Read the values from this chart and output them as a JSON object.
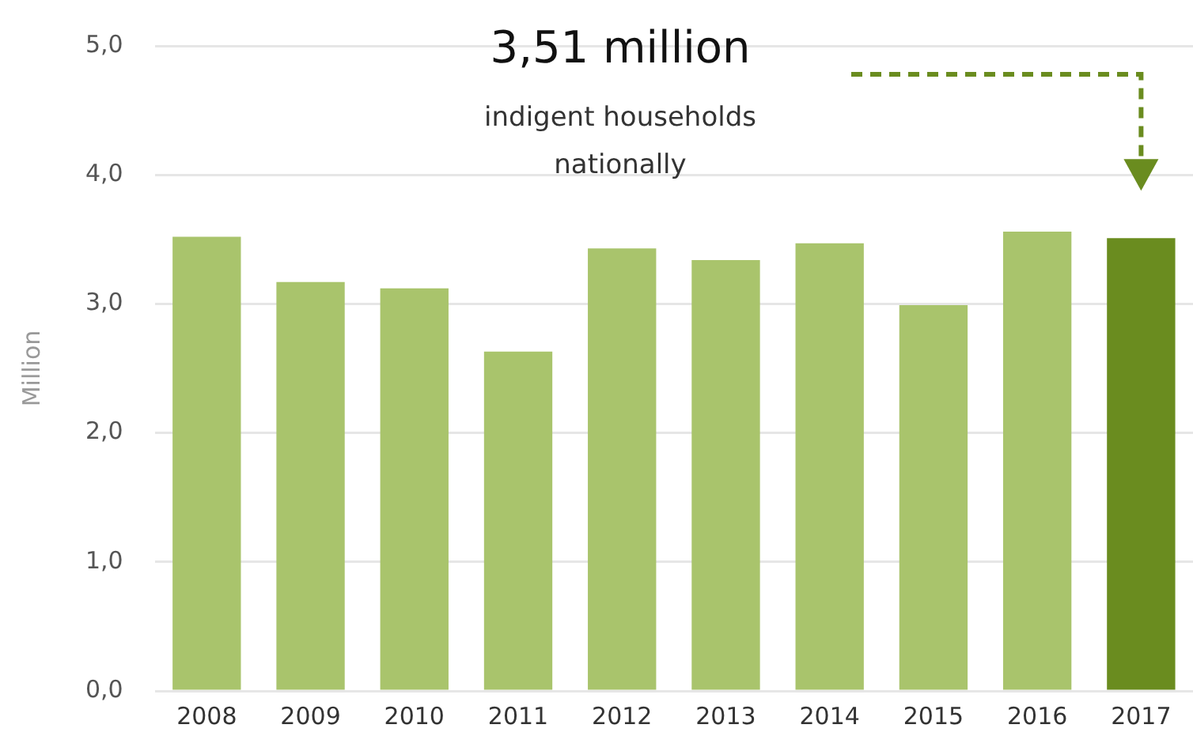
{
  "chart_data": {
    "type": "bar",
    "ylabel": "Million",
    "categories": [
      "2008",
      "2009",
      "2010",
      "2011",
      "2012",
      "2013",
      "2014",
      "2015",
      "2016",
      "2017"
    ],
    "values": [
      3.52,
      3.17,
      3.12,
      2.63,
      3.43,
      3.34,
      3.47,
      2.99,
      3.56,
      3.51
    ],
    "colors": [
      "#a9c46c",
      "#a9c46c",
      "#a9c46c",
      "#a9c46c",
      "#a9c46c",
      "#a9c46c",
      "#a9c46c",
      "#a9c46c",
      "#a9c46c",
      "#6a8c1f"
    ],
    "ylim": [
      0,
      5
    ],
    "yticks": [
      {
        "value": 0,
        "label": "0,0"
      },
      {
        "value": 1,
        "label": "1,0"
      },
      {
        "value": 2,
        "label": "2,0"
      },
      {
        "value": 3,
        "label": "3,0"
      },
      {
        "value": 4,
        "label": "4,0"
      },
      {
        "value": 5,
        "label": "5,0"
      }
    ],
    "grid": "y",
    "legend": false,
    "annotations": [
      "3,51 million",
      "indigent households nationally"
    ]
  }
}
